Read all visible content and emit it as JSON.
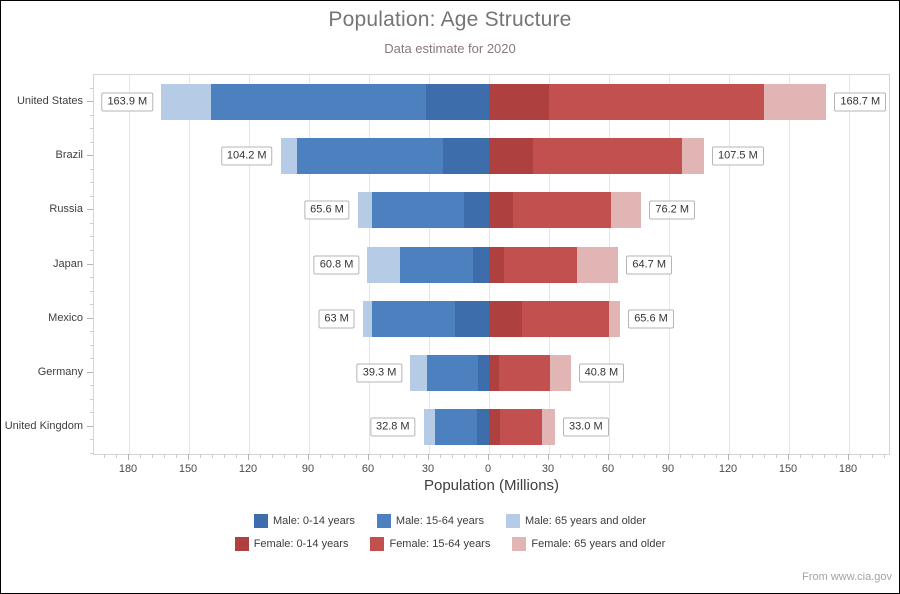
{
  "title": "Population: Age Structure",
  "subtitle": "Data estimate for 2020",
  "source_note": "From www.cia.gov",
  "chart_data": {
    "type": "bar",
    "orientation": "horizontal-diverging-stacked",
    "unit": "millions",
    "title": "Population: Age Structure",
    "subtitle": "Data estimate for 2020",
    "xlabel": "Population (Millions)",
    "x_tick_labels": [
      "180",
      "150",
      "120",
      "90",
      "60",
      "30",
      "0",
      "30",
      "60",
      "90",
      "120",
      "150",
      "180"
    ],
    "x_major_step_millions": 30,
    "x_range_left_millions": 197.5,
    "x_range_right_millions": 200.5,
    "grid": true,
    "legend_position": "bottom",
    "categories": [
      "United States",
      "Brazil",
      "Russia",
      "Japan",
      "Mexico",
      "Germany",
      "United Kingdom"
    ],
    "series": [
      {
        "name": "Male: 0-14 years",
        "side": "male",
        "color": "#3e6dac",
        "values": [
          31.4,
          22.8,
          12.6,
          8.0,
          17.1,
          5.3,
          5.9
        ]
      },
      {
        "name": "Male: 15-64 years",
        "side": "male",
        "color": "#4d80bf",
        "values": [
          107.5,
          73.1,
          46.0,
          36.7,
          41.6,
          25.9,
          21.3
        ]
      },
      {
        "name": "Male: 65 years and older",
        "side": "male",
        "color": "#b6cce6",
        "values": [
          25.0,
          8.3,
          7.0,
          16.1,
          4.4,
          8.1,
          5.5
        ]
      },
      {
        "name": "Female: 0-14 years",
        "side": "female",
        "color": "#ae403f",
        "values": [
          30.0,
          21.9,
          11.9,
          7.6,
          16.3,
          5.0,
          5.7
        ]
      },
      {
        "name": "Female: 15-64 years",
        "side": "female",
        "color": "#c1504e",
        "values": [
          107.7,
          74.4,
          49.3,
          36.5,
          43.9,
          25.5,
          20.7
        ]
      },
      {
        "name": "Female: 65 years and older",
        "side": "female",
        "color": "#e2b5b5",
        "values": [
          31.0,
          11.2,
          15.0,
          20.6,
          5.4,
          10.3,
          6.6
        ]
      }
    ],
    "total_labels": {
      "male": [
        "163.9 M",
        "104.2 M",
        "65.6 M",
        "60.8 M",
        "63 M",
        "39.3 M",
        "32.8 M"
      ],
      "female": [
        "168.7 M",
        "107.5 M",
        "76.2 M",
        "64.7 M",
        "65.6 M",
        "40.8 M",
        "33.0 M"
      ]
    }
  }
}
